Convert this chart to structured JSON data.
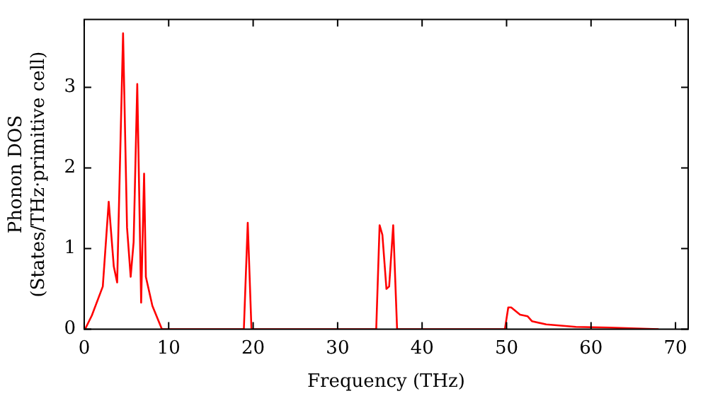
{
  "chart_data": {
    "type": "line",
    "xlabel": "Frequency (THz)",
    "ylabel": "Phonon DOS\n(States/THz·primitive cell)",
    "x": [
      0.1,
      0.9,
      2.2,
      2.9,
      3.5,
      3.9,
      4.6,
      5.07,
      5.5,
      5.85,
      6.28,
      6.74,
      7.09,
      7.3,
      8.07,
      9.2,
      18.9,
      19.36,
      19.8,
      34.57,
      34.97,
      35.3,
      35.78,
      36.1,
      36.58,
      37.04,
      49.8,
      50.2,
      50.55,
      51.6,
      52.5,
      53.0,
      54.7,
      58.2,
      62.2,
      68
    ],
    "series": [
      {
        "color": "#ff0000",
        "values": [
          0,
          0.17,
          0.53,
          1.58,
          0.78,
          0.58,
          3.67,
          1.26,
          0.65,
          1.08,
          3.04,
          0.33,
          1.93,
          0.65,
          0.29,
          0,
          0,
          1.32,
          0,
          0,
          1.29,
          1.17,
          0.5,
          0.53,
          1.29,
          0,
          0,
          0.27,
          0.27,
          0.18,
          0.16,
          0.1,
          0.06,
          0.03,
          0.02,
          0
        ]
      }
    ],
    "xlim": [
      0,
      71.5
    ],
    "ylim": [
      0,
      3.84
    ],
    "xticks": [
      0,
      10,
      20,
      30,
      40,
      50,
      60,
      70
    ],
    "yticks": [
      0,
      1,
      2,
      3
    ],
    "grid": false,
    "legend": false,
    "marker": "none",
    "line_style": "solid"
  }
}
